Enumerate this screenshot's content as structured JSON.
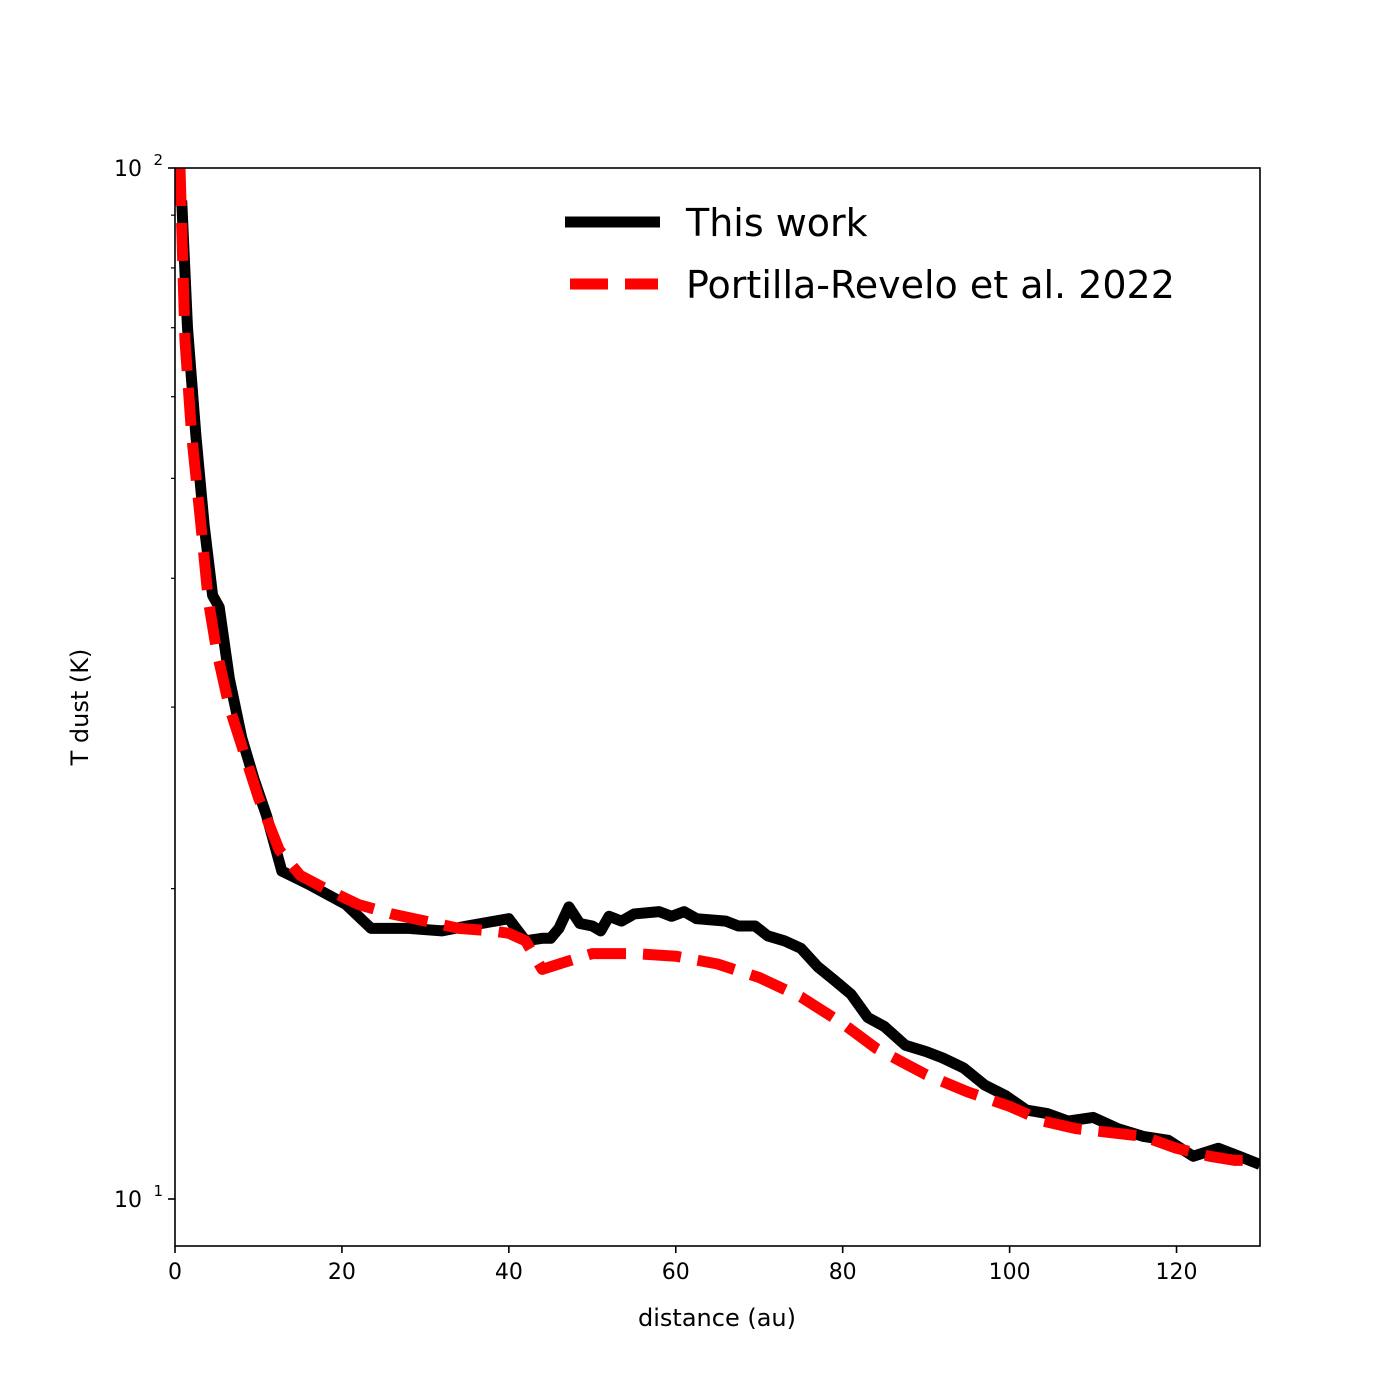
{
  "chart_data": {
    "type": "line",
    "xlabel": "distance (au)",
    "ylabel": "T dust (K)",
    "xlim": [
      0,
      130
    ],
    "ylim": [
      9,
      100
    ],
    "yscale": "log",
    "x_ticks": [
      0,
      20,
      40,
      60,
      80,
      100,
      120
    ],
    "y_major_ticks": [
      {
        "value": 10,
        "base": "10",
        "exp": "1"
      },
      {
        "value": 100,
        "base": "10",
        "exp": "2"
      }
    ],
    "y_minor_ticks": [
      20,
      30,
      40,
      50,
      60,
      70,
      80,
      90
    ],
    "grid": false,
    "legend_position": "top-right",
    "series": [
      {
        "name": "This work",
        "color": "#000000",
        "style": "solid",
        "x": [
          0.8,
          1.5,
          2.5,
          3.5,
          4.5,
          5.3,
          6.5,
          8,
          9.5,
          11,
          12.8,
          16,
          20.5,
          23.5,
          28,
          32,
          35,
          40,
          42,
          44,
          45,
          46,
          47.2,
          48.5,
          50,
          51,
          52,
          53.5,
          55,
          58,
          59.5,
          61,
          62.5,
          66,
          67.5,
          69.5,
          71,
          73,
          75,
          77,
          79,
          81,
          83,
          85,
          87.5,
          90,
          92,
          94.5,
          97,
          99.5,
          102,
          104.5,
          107,
          110,
          113,
          116,
          119,
          122,
          125,
          127.5,
          130
        ],
        "y": [
          93,
          70,
          55,
          45,
          38.5,
          37.5,
          32,
          28,
          25.5,
          23.5,
          20.8,
          20.2,
          19.3,
          18.3,
          18.3,
          18.2,
          18.4,
          18.7,
          17.8,
          17.9,
          17.9,
          18.3,
          19.2,
          18.5,
          18.4,
          18.2,
          18.8,
          18.6,
          18.9,
          19.0,
          18.8,
          19.0,
          18.7,
          18.6,
          18.4,
          18.4,
          18.0,
          17.8,
          17.5,
          16.8,
          16.3,
          15.8,
          15.0,
          14.7,
          14.1,
          13.9,
          13.7,
          13.4,
          12.9,
          12.6,
          12.2,
          12.1,
          11.9,
          12.0,
          11.7,
          11.5,
          11.4,
          11.0,
          11.2,
          11.0,
          10.8
        ]
      },
      {
        "name": "Portilla-Revelo et al. 2022",
        "color": "#ff0000",
        "style": "dashed",
        "x": [
          0.6,
          1.2,
          2,
          3,
          4,
          5,
          6.5,
          8,
          10,
          12.5,
          15,
          18,
          22,
          26,
          30,
          34,
          38,
          40,
          42,
          44,
          47,
          50,
          55,
          60,
          65,
          70,
          75,
          80,
          84,
          90,
          95,
          100,
          104,
          108,
          112,
          116,
          120,
          124,
          127,
          130
        ],
        "y": [
          100,
          68,
          55,
          46,
          38,
          34,
          30,
          27.5,
          24.5,
          21.8,
          20.6,
          20.0,
          19.3,
          18.9,
          18.6,
          18.3,
          18.2,
          18.1,
          17.8,
          16.7,
          17.0,
          17.3,
          17.3,
          17.2,
          16.9,
          16.4,
          15.7,
          14.8,
          14.0,
          13.2,
          12.7,
          12.3,
          11.9,
          11.7,
          11.6,
          11.5,
          11.2,
          11.0,
          10.9,
          10.9
        ]
      }
    ]
  }
}
